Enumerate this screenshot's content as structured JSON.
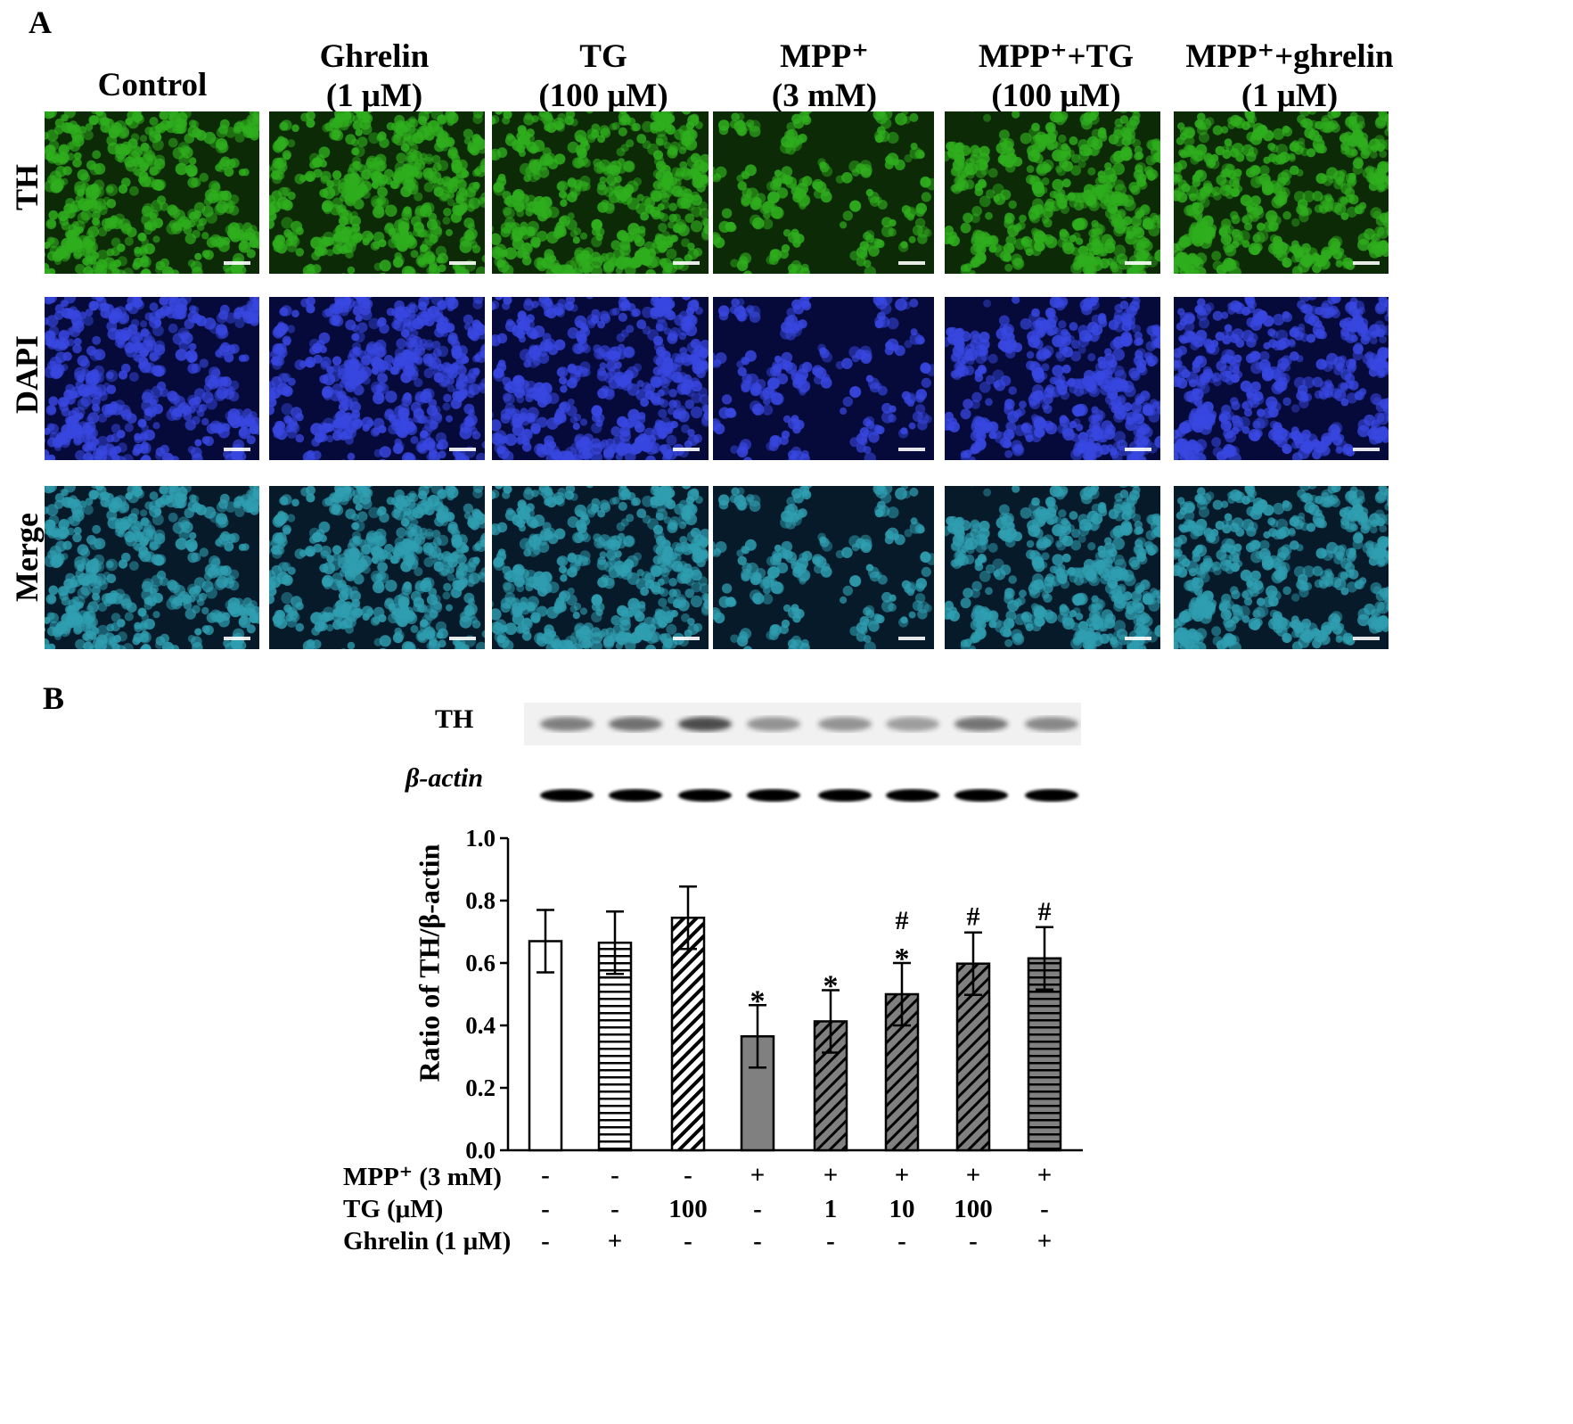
{
  "panel_a": {
    "letter": "A",
    "columns": [
      {
        "line1": "Control",
        "line2": ""
      },
      {
        "line1": "Ghrelin",
        "line2": "(1 μM)"
      },
      {
        "line1": "TG",
        "line2": "(100 μM)"
      },
      {
        "line1": "MPP⁺",
        "line2": "(3 mM)"
      },
      {
        "line1": "MPP⁺+TG",
        "line2": "(100 μM)"
      },
      {
        "line1": "MPP⁺+ghrelin",
        "line2": "(1 μM)"
      }
    ],
    "rows": [
      "TH",
      "DAPI",
      "Merge"
    ],
    "stain_colors": {
      "TH": "#2fae1e",
      "DAPI": "#3847e0",
      "Merge": "#2f9eb0",
      "background": "#071a06"
    }
  },
  "panel_b": {
    "letter": "B",
    "blot_labels": {
      "th": "TH",
      "actin": "β-actin"
    },
    "conditions": {
      "rows": [
        {
          "label": "MPP⁺ (3 mM)",
          "values": [
            "-",
            "-",
            "-",
            "+",
            "+",
            "+",
            "+",
            "+"
          ]
        },
        {
          "label": "TG (μM)",
          "values": [
            "-",
            "-",
            "100",
            "-",
            "1",
            "10",
            "100",
            "-"
          ]
        },
        {
          "label": "Ghrelin (1 μM)",
          "values": [
            "-",
            "+",
            "-",
            "-",
            "-",
            "-",
            "-",
            "+"
          ]
        }
      ]
    }
  },
  "chart_data": {
    "type": "bar",
    "title": "",
    "xlabel": "",
    "ylabel": "Ratio of TH/β-actin",
    "ylim": [
      0.0,
      1.0
    ],
    "yticks": [
      "0.0",
      "0.2",
      "0.4",
      "0.6",
      "0.8",
      "1.0"
    ],
    "values": [
      0.67,
      0.665,
      0.745,
      0.365,
      0.413,
      0.5,
      0.598,
      0.615
    ],
    "errors": [
      0.1,
      0.1,
      0.1,
      0.1,
      0.1,
      0.1,
      0.1,
      0.1
    ],
    "patterns": [
      "white",
      "horizontal",
      "diagonal-white",
      "solid-gray",
      "diagonal-gray",
      "diagonal-gray",
      "diagonal-gray",
      "horizontal-gray"
    ],
    "significance": [
      [],
      [],
      [],
      [
        "*"
      ],
      [
        "*"
      ],
      [
        "#",
        "*"
      ],
      [
        "#"
      ],
      [
        "#"
      ]
    ],
    "grid": false,
    "legend": "none"
  }
}
